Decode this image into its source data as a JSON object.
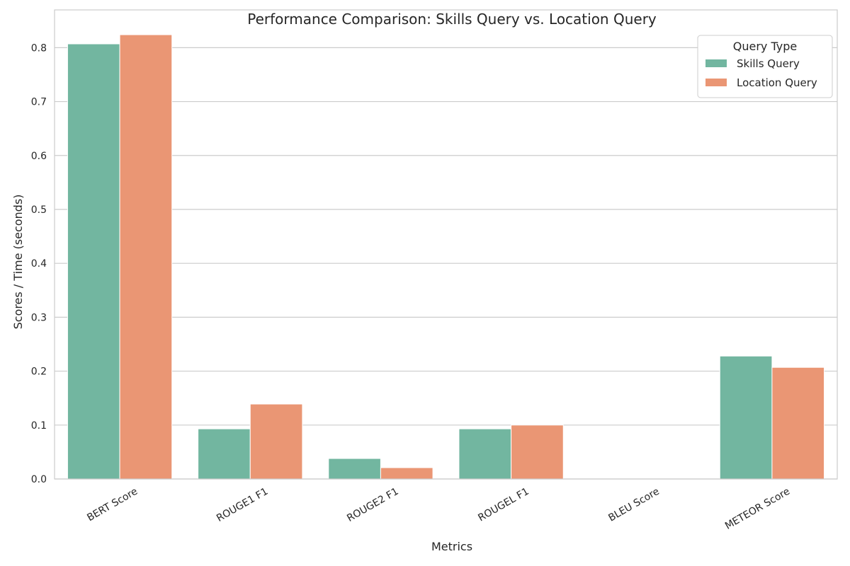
{
  "chart_data": {
    "type": "bar",
    "title": "Performance Comparison: Skills Query vs. Location Query",
    "xlabel": "Metrics",
    "ylabel": "Scores / Time (seconds)",
    "categories": [
      "BERT Score",
      "ROUGE1 F1",
      "ROUGE2 F1",
      "ROUGEL F1",
      "BLEU Score",
      "METEOR Score"
    ],
    "series": [
      {
        "name": "Skills Query",
        "color": "#72b6a0",
        "values": [
          0.807,
          0.093,
          0.038,
          0.093,
          0.0,
          0.228
        ]
      },
      {
        "name": "Location Query",
        "color": "#ea9674",
        "values": [
          0.824,
          0.139,
          0.021,
          0.1,
          0.0,
          0.207
        ]
      }
    ],
    "ylim": [
      0,
      0.87
    ],
    "yticks": [
      0.0,
      0.1,
      0.2,
      0.3,
      0.4,
      0.5,
      0.6,
      0.7,
      0.8
    ],
    "ytick_labels": [
      "0.0",
      "0.1",
      "0.2",
      "0.3",
      "0.4",
      "0.5",
      "0.6",
      "0.7",
      "0.8"
    ],
    "grid": true,
    "legend": {
      "title": "Query Type",
      "placement": "top-right"
    }
  }
}
